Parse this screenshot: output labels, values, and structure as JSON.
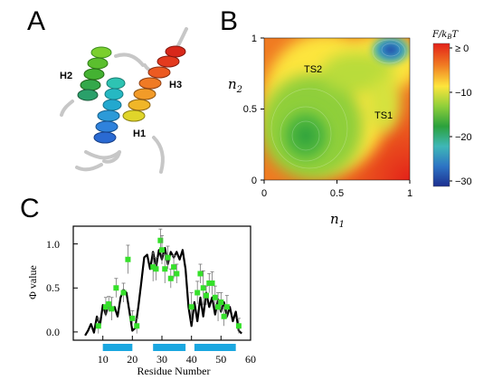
{
  "panels": {
    "a": {
      "letter": "A"
    },
    "b": {
      "letter": "B"
    },
    "c": {
      "letter": "C"
    }
  },
  "helix_labels": [
    "H2",
    "H3",
    "H1"
  ],
  "chart_data": [
    {
      "type": "heatmap",
      "xlabel_base": "n",
      "xlabel_sub": "1",
      "ylabel_base": "n",
      "ylabel_sub": "2",
      "xlim": [
        0,
        1
      ],
      "ylim": [
        0,
        1
      ],
      "xticks": [
        "0",
        "0.5",
        "1"
      ],
      "yticks": [
        "0",
        "0.5",
        "1"
      ],
      "annotations": [
        {
          "text": "TS2",
          "x": 0.4,
          "y": 0.78
        },
        {
          "text": "TS1",
          "x": 0.82,
          "y": 0.45
        }
      ],
      "minima": [
        {
          "x": 0.3,
          "y": 0.3,
          "value": -20
        },
        {
          "x": 0.88,
          "y": 0.93,
          "value": -30
        }
      ],
      "colorbar": {
        "label": "F/k_BT",
        "label_parts": {
          "f": "F/k",
          "sub": "B",
          "t": "T"
        },
        "range": [
          -30,
          0
        ],
        "ticks": [
          "≥ 0",
          "−10",
          "−20",
          "−30"
        ],
        "colors": [
          "#e32119",
          "#f07a22",
          "#fde53c",
          "#8fcf3a",
          "#2ba13c",
          "#3fb7b7",
          "#2d74c4",
          "#1d2f8f"
        ]
      },
      "grid": false
    },
    {
      "type": "line",
      "xlabel": "Residue Number",
      "ylabel": "Φ value",
      "xlim": [
        0,
        60
      ],
      "ylim": [
        -0.05,
        1.15
      ],
      "xticks": [
        "10",
        "20",
        "30",
        "40",
        "50",
        "60"
      ],
      "yticks": [
        "0.0",
        "0.5",
        "1.0"
      ],
      "grid": false,
      "series": [
        {
          "style": "line",
          "x": [
            4,
            5,
            6,
            7,
            8,
            9,
            10,
            11,
            12,
            13,
            14,
            15,
            16,
            17,
            18,
            19,
            20,
            21,
            22,
            23,
            24,
            25,
            26,
            27,
            28,
            29,
            30,
            31,
            32,
            33,
            34,
            35,
            36,
            37,
            38,
            39,
            40,
            41,
            42,
            43,
            44,
            45,
            46,
            47,
            48,
            49,
            50,
            51,
            52,
            53,
            54,
            55,
            56,
            57
          ],
          "y": [
            0.0,
            0.05,
            0.12,
            0.03,
            0.2,
            0.1,
            0.32,
            0.22,
            0.35,
            0.28,
            0.3,
            0.2,
            0.4,
            0.48,
            0.45,
            0.25,
            0.05,
            0.08,
            0.3,
            0.55,
            0.82,
            0.85,
            0.7,
            0.88,
            0.72,
            0.9,
            0.8,
            0.92,
            0.75,
            0.88,
            0.82,
            0.88,
            0.8,
            0.9,
            0.7,
            0.3,
            0.1,
            0.35,
            0.15,
            0.4,
            0.2,
            0.45,
            0.3,
            0.4,
            0.22,
            0.38,
            0.25,
            0.35,
            0.2,
            0.3,
            0.15,
            0.25,
            0.05,
            0.02
          ]
        },
        {
          "style": "markers_errorbars",
          "x": [
            8.5,
            11,
            12,
            13,
            14.5,
            17,
            18.5,
            20,
            21.5,
            27,
            28,
            29.5,
            30,
            31,
            32,
            33,
            34,
            35,
            40,
            42,
            43,
            44,
            45,
            46,
            47,
            48,
            49,
            50,
            51,
            52,
            56
          ],
          "y": [
            0.1,
            0.3,
            0.33,
            0.28,
            0.5,
            0.45,
            0.8,
            0.18,
            0.1,
            0.72,
            0.7,
            1.0,
            0.9,
            0.7,
            0.82,
            0.6,
            0.72,
            0.65,
            0.3,
            0.45,
            0.65,
            0.5,
            0.42,
            0.55,
            0.55,
            0.4,
            0.3,
            0.35,
            0.2,
            0.3,
            0.1
          ],
          "err": [
            0.08,
            0.1,
            0.08,
            0.12,
            0.1,
            0.1,
            0.15,
            0.08,
            0.08,
            0.15,
            0.12,
            0.12,
            0.15,
            0.15,
            0.12,
            0.1,
            0.12,
            0.1,
            0.15,
            0.12,
            0.1,
            0.18,
            0.1,
            0.1,
            0.12,
            0.12,
            0.15,
            0.1,
            0.1,
            0.12,
            0.08
          ]
        }
      ],
      "helix_bars": [
        {
          "start": 10,
          "end": 20
        },
        {
          "start": 27,
          "end": 38
        },
        {
          "start": 41,
          "end": 55
        }
      ]
    }
  ]
}
